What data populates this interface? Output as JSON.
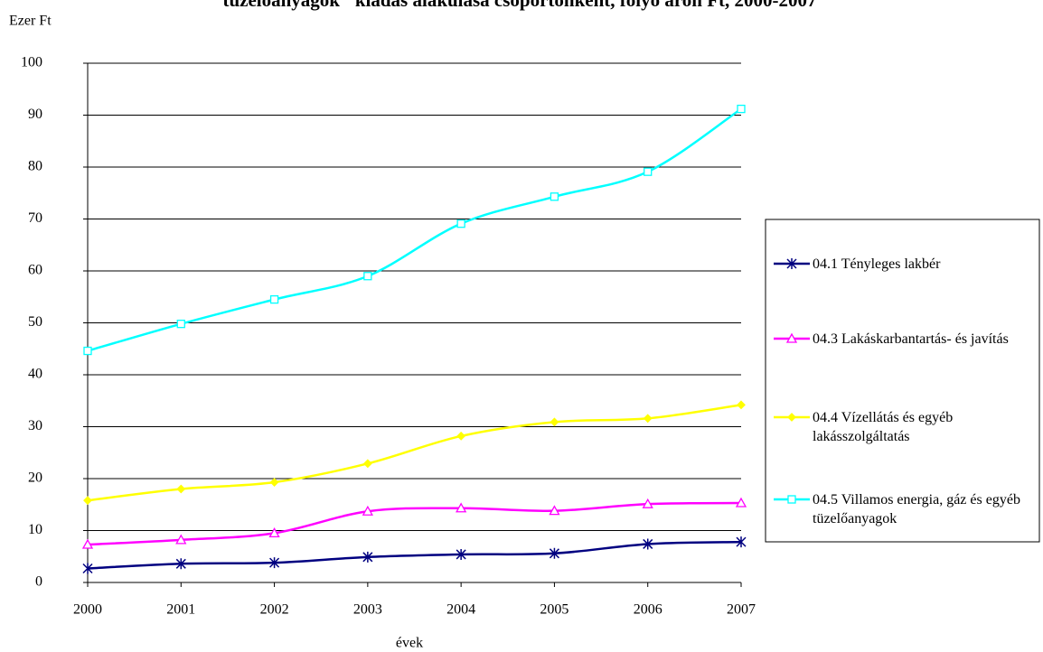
{
  "chart_data": {
    "type": "line",
    "title": "tüzelőanyagok\" kiadás alakulása csoportonként, folyó áron Ft, 2000-2007",
    "y_label": "Ezer  Ft",
    "x_label": "évek",
    "categories": [
      "2000",
      "2001",
      "2002",
      "2003",
      "2004",
      "2005",
      "2006",
      "2007"
    ],
    "series": [
      {
        "name": "04.1 Tényleges lakbér",
        "color": "#000080",
        "marker": "star",
        "values": [
          2.7,
          3.6,
          3.8,
          4.9,
          5.4,
          5.6,
          7.4,
          7.8
        ]
      },
      {
        "name": "04.3 Lakáskarbantartás- és javítás",
        "color": "#ff00ff",
        "marker": "triangle",
        "values": [
          7.3,
          8.2,
          9.5,
          13.7,
          14.3,
          13.8,
          15.1,
          15.3
        ]
      },
      {
        "name": "04.4 Vízellátás és egyéb lakásszolgáltatás",
        "color": "#ffff00",
        "marker": "diamond",
        "values": [
          15.8,
          18,
          19.3,
          22.9,
          28.2,
          30.9,
          31.6,
          34.2
        ]
      },
      {
        "name": "04.5 Villamos energia, gáz és egyéb tüzelőanyagok",
        "color": "#00ffff",
        "marker": "square",
        "values": [
          44.6,
          49.8,
          54.5,
          59,
          69.1,
          74.3,
          79.1,
          91.2
        ]
      }
    ],
    "ylim": [
      0,
      100
    ],
    "yticks": [
      0,
      10,
      20,
      30,
      40,
      50,
      60,
      70,
      80,
      90,
      100
    ],
    "grid": true,
    "legend": "right"
  }
}
